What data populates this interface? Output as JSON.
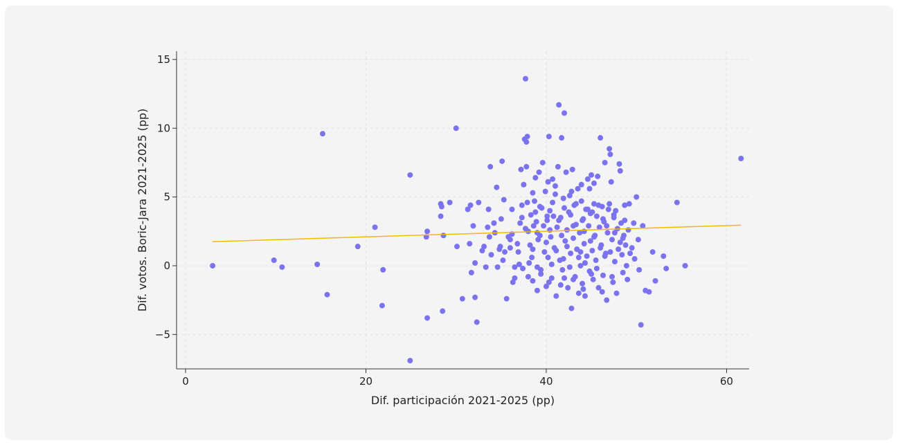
{
  "chart_data": {
    "type": "scatter",
    "title": "",
    "xlabel": "Dif. participación 2021-2025 (pp)",
    "ylabel": "Dif. votos. Boric-Jara 2021-2025 (pp)",
    "xlim": [
      -1,
      62.5
    ],
    "ylim": [
      -7.5,
      15.6
    ],
    "xticks": [
      0,
      20,
      40,
      60
    ],
    "yticks": [
      -5,
      0,
      5,
      10,
      15
    ],
    "grid": true,
    "colors": {
      "points": "#7b72ee",
      "trend": "#f5b800",
      "axis": "#333333",
      "grid": "#e0e0e0",
      "background": "#f4f4f4"
    },
    "trend_line": {
      "x": [
        3,
        61.6
      ],
      "y": [
        1.75,
        2.95
      ]
    },
    "points": [
      [
        3,
        0
      ],
      [
        9.8,
        0.4
      ],
      [
        10.7,
        -0.1
      ],
      [
        14.6,
        0.1
      ],
      [
        15.2,
        9.6
      ],
      [
        15.7,
        -2.1
      ],
      [
        19.1,
        1.4
      ],
      [
        21,
        2.8
      ],
      [
        21.9,
        -0.3
      ],
      [
        21.8,
        -2.9
      ],
      [
        24.9,
        6.6
      ],
      [
        24.9,
        -6.9
      ],
      [
        26.7,
        2.1
      ],
      [
        26.8,
        2.5
      ],
      [
        26.8,
        -3.8
      ],
      [
        28.3,
        4.5
      ],
      [
        28.3,
        3.6
      ],
      [
        28.4,
        4.3
      ],
      [
        28.6,
        2.2
      ],
      [
        28.5,
        -3.3
      ],
      [
        29.3,
        4.6
      ],
      [
        30,
        10
      ],
      [
        30.1,
        1.4
      ],
      [
        30.7,
        -2.4
      ],
      [
        31.3,
        4.1
      ],
      [
        31.5,
        1.6
      ],
      [
        31.6,
        4.4
      ],
      [
        31.7,
        -0.5
      ],
      [
        31.9,
        2.9
      ],
      [
        32.1,
        0.2
      ],
      [
        32.1,
        -2.3
      ],
      [
        32.3,
        -4.1
      ],
      [
        32.5,
        4.6
      ],
      [
        32.9,
        1.1
      ],
      [
        33.1,
        1.4
      ],
      [
        33.3,
        -0.1
      ],
      [
        33.5,
        2.8
      ],
      [
        33.6,
        4.1
      ],
      [
        33.8,
        7.2
      ],
      [
        33.9,
        0.8
      ],
      [
        34.2,
        3.1
      ],
      [
        34.3,
        2.4
      ],
      [
        34.5,
        5.7
      ],
      [
        34.6,
        -0.1
      ],
      [
        34.9,
        1.4
      ],
      [
        35,
        3.4
      ],
      [
        35.1,
        7.6
      ],
      [
        35.3,
        4.8
      ],
      [
        35.4,
        1.0
      ],
      [
        35.6,
        -2.4
      ],
      [
        35.8,
        2.1
      ],
      [
        36,
        1.3
      ],
      [
        36.2,
        4.1
      ],
      [
        36.3,
        -1.2
      ],
      [
        36.5,
        -0.9
      ],
      [
        36.8,
        1.6
      ],
      [
        37,
        0.1
      ],
      [
        37.1,
        3.1
      ],
      [
        37.2,
        7.0
      ],
      [
        37.3,
        4.4
      ],
      [
        37.4,
        -0.2
      ],
      [
        37.5,
        5.9
      ],
      [
        37.6,
        9.2
      ],
      [
        37.7,
        13.6
      ],
      [
        37.8,
        9.0
      ],
      [
        37.9,
        9.4
      ],
      [
        37.8,
        7.2
      ],
      [
        38,
        2.5
      ],
      [
        38.2,
        1.5
      ],
      [
        38.3,
        3.7
      ],
      [
        38.4,
        0.6
      ],
      [
        38.5,
        -1.1
      ],
      [
        38.6,
        2.9
      ],
      [
        38.7,
        4.7
      ],
      [
        38.8,
        6.4
      ],
      [
        38.9,
        3.2
      ],
      [
        39,
        -0.1
      ],
      [
        39.1,
        1.9
      ],
      [
        39.2,
        6.8
      ],
      [
        39.3,
        2.2
      ],
      [
        39.4,
        -0.6
      ],
      [
        39.5,
        4.2
      ],
      [
        39.6,
        7.5
      ],
      [
        39.7,
        2.9
      ],
      [
        39.8,
        1.0
      ],
      [
        39.9,
        5.4
      ],
      [
        40,
        -1.5
      ],
      [
        40.1,
        3.3
      ],
      [
        40.2,
        0.6
      ],
      [
        40.3,
        9.4
      ],
      [
        40.4,
        4.0
      ],
      [
        40.5,
        2.1
      ],
      [
        40.6,
        -0.9
      ],
      [
        40.7,
        6.3
      ],
      [
        40.8,
        3.6
      ],
      [
        40.9,
        1.3
      ],
      [
        41,
        5.8
      ],
      [
        41.1,
        -2.2
      ],
      [
        41.2,
        2.8
      ],
      [
        41.3,
        7.2
      ],
      [
        41.4,
        11.7
      ],
      [
        41.5,
        0.4
      ],
      [
        41.6,
        3.5
      ],
      [
        41.7,
        9.3
      ],
      [
        41.8,
        -0.3
      ],
      [
        41.9,
        4.9
      ],
      [
        42,
        11.1
      ],
      [
        42.1,
        1.8
      ],
      [
        42.2,
        6.8
      ],
      [
        42.3,
        2.6
      ],
      [
        42.4,
        -1.6
      ],
      [
        42.5,
        3.9
      ],
      [
        42.6,
        5.1
      ],
      [
        42.7,
        0.9
      ],
      [
        42.8,
        -3.1
      ],
      [
        42.9,
        7.0
      ],
      [
        43,
        2.0
      ],
      [
        43.1,
        4.4
      ],
      [
        43.2,
        -0.8
      ],
      [
        43.3,
        3.0
      ],
      [
        43.4,
        1.2
      ],
      [
        43.5,
        5.6
      ],
      [
        43.6,
        -2.0
      ],
      [
        43.7,
        2.4
      ],
      [
        43.8,
        0.0
      ],
      [
        43.9,
        4.7
      ],
      [
        44,
        -1.3
      ],
      [
        44.1,
        3.4
      ],
      [
        44.2,
        1.6
      ],
      [
        44.3,
        -2.2
      ],
      [
        44.4,
        4.1
      ],
      [
        44.5,
        0.7
      ],
      [
        44.6,
        6.3
      ],
      [
        44.7,
        2.9
      ],
      [
        44.8,
        -0.4
      ],
      [
        44.9,
        3.8
      ],
      [
        45,
        6.6
      ],
      [
        45.1,
        1.1
      ],
      [
        45.2,
        -1.0
      ],
      [
        45.3,
        4.5
      ],
      [
        45.4,
        2.2
      ],
      [
        45.5,
        0.4
      ],
      [
        45.6,
        3.6
      ],
      [
        45.7,
        6.5
      ],
      [
        45.8,
        -1.6
      ],
      [
        45.9,
        2.8
      ],
      [
        46,
        9.3
      ],
      [
        46.1,
        1.5
      ],
      [
        46.2,
        4.3
      ],
      [
        46.3,
        -0.7
      ],
      [
        46.4,
        3.2
      ],
      [
        46.5,
        7.5
      ],
      [
        46.6,
        0.9
      ],
      [
        46.7,
        -2.5
      ],
      [
        46.8,
        2.4
      ],
      [
        46.9,
        4.1
      ],
      [
        47,
        8.5
      ],
      [
        47.1,
        8.1
      ],
      [
        47.2,
        6.1
      ],
      [
        47.3,
        1.9
      ],
      [
        47.4,
        -1.2
      ],
      [
        47.5,
        3.5
      ],
      [
        47.6,
        0.3
      ],
      [
        47.7,
        4.0
      ],
      [
        47.8,
        -2.0
      ],
      [
        47.9,
        2.7
      ],
      [
        48,
        1.2
      ],
      [
        48.1,
        7.4
      ],
      [
        48.2,
        6.9
      ],
      [
        48.3,
        3.1
      ],
      [
        48.4,
        0.8
      ],
      [
        48.5,
        -0.5
      ],
      [
        48.6,
        2.2
      ],
      [
        48.7,
        4.4
      ],
      [
        48.8,
        1.5
      ],
      [
        48.9,
        0.0
      ],
      [
        49,
        -1.0
      ],
      [
        49.1,
        2.6
      ],
      [
        49.2,
        4.5
      ],
      [
        49.3,
        0.9
      ],
      [
        49.5,
        1.3
      ],
      [
        49.7,
        3.1
      ],
      [
        49.8,
        0.5
      ],
      [
        50,
        5.0
      ],
      [
        50.2,
        1.9
      ],
      [
        50.3,
        -0.3
      ],
      [
        50.5,
        -4.3
      ],
      [
        50.7,
        2.9
      ],
      [
        51,
        -1.8
      ],
      [
        51.4,
        -1.9
      ],
      [
        51.8,
        1.0
      ],
      [
        52.1,
        -1.1
      ],
      [
        53,
        0.7
      ],
      [
        53.3,
        -0.2
      ],
      [
        54.5,
        4.6
      ],
      [
        55.4,
        0.0
      ],
      [
        61.6,
        7.8
      ],
      [
        36.5,
        -0.1
      ],
      [
        38.1,
        0.2
      ],
      [
        39.4,
        -0.3
      ],
      [
        40.6,
        0.1
      ],
      [
        41.9,
        0.5
      ],
      [
        42.6,
        -0.1
      ],
      [
        43.6,
        0.6
      ],
      [
        44.3,
        0.2
      ],
      [
        45.6,
        -0.2
      ],
      [
        46.5,
        0.7
      ],
      [
        36.9,
        1.0
      ],
      [
        38.5,
        1.2
      ],
      [
        40.0,
        1.7
      ],
      [
        41.1,
        1.1
      ],
      [
        42.3,
        1.4
      ],
      [
        43.8,
        1.0
      ],
      [
        44.9,
        1.8
      ],
      [
        46.0,
        1.3
      ],
      [
        47.1,
        1.0
      ],
      [
        48.2,
        1.7
      ],
      [
        36.2,
        2.3
      ],
      [
        37.7,
        2.7
      ],
      [
        39.0,
        2.4
      ],
      [
        40.4,
        2.6
      ],
      [
        41.7,
        2.2
      ],
      [
        43.0,
        2.9
      ],
      [
        44.2,
        2.5
      ],
      [
        45.3,
        2.1
      ],
      [
        46.7,
        2.9
      ],
      [
        47.6,
        2.4
      ],
      [
        37.3,
        3.5
      ],
      [
        38.8,
        3.9
      ],
      [
        40.1,
        3.6
      ],
      [
        41.4,
        3.3
      ],
      [
        42.7,
        3.7
      ],
      [
        44.0,
        3.3
      ],
      [
        45.1,
        3.9
      ],
      [
        46.3,
        3.4
      ],
      [
        47.5,
        3.7
      ],
      [
        48.7,
        3.3
      ],
      [
        37.9,
        4.6
      ],
      [
        39.3,
        4.3
      ],
      [
        40.7,
        4.6
      ],
      [
        42.0,
        4.2
      ],
      [
        43.3,
        4.5
      ],
      [
        44.6,
        4.1
      ],
      [
        45.8,
        4.4
      ],
      [
        47.0,
        4.5
      ],
      [
        38.5,
        5.3
      ],
      [
        41.0,
        5.2
      ],
      [
        42.8,
        5.4
      ],
      [
        44.8,
        5.6
      ],
      [
        43.9,
        5.9
      ],
      [
        40.2,
        6.1
      ],
      [
        45.3,
        6.0
      ],
      [
        39.0,
        -1.8
      ],
      [
        41.6,
        -1.4
      ],
      [
        43.0,
        -1.0
      ],
      [
        44.1,
        -1.7
      ],
      [
        46.2,
        -1.9
      ],
      [
        47.3,
        -0.8
      ],
      [
        45.0,
        -0.6
      ],
      [
        42.0,
        -0.9
      ],
      [
        40.3,
        -1.2
      ],
      [
        38.0,
        -0.8
      ],
      [
        35.2,
        0.4
      ],
      [
        36.0,
        1.9
      ],
      [
        34.8,
        1.2
      ],
      [
        33.7,
        2.1
      ],
      [
        48.5,
        2.0
      ]
    ]
  }
}
